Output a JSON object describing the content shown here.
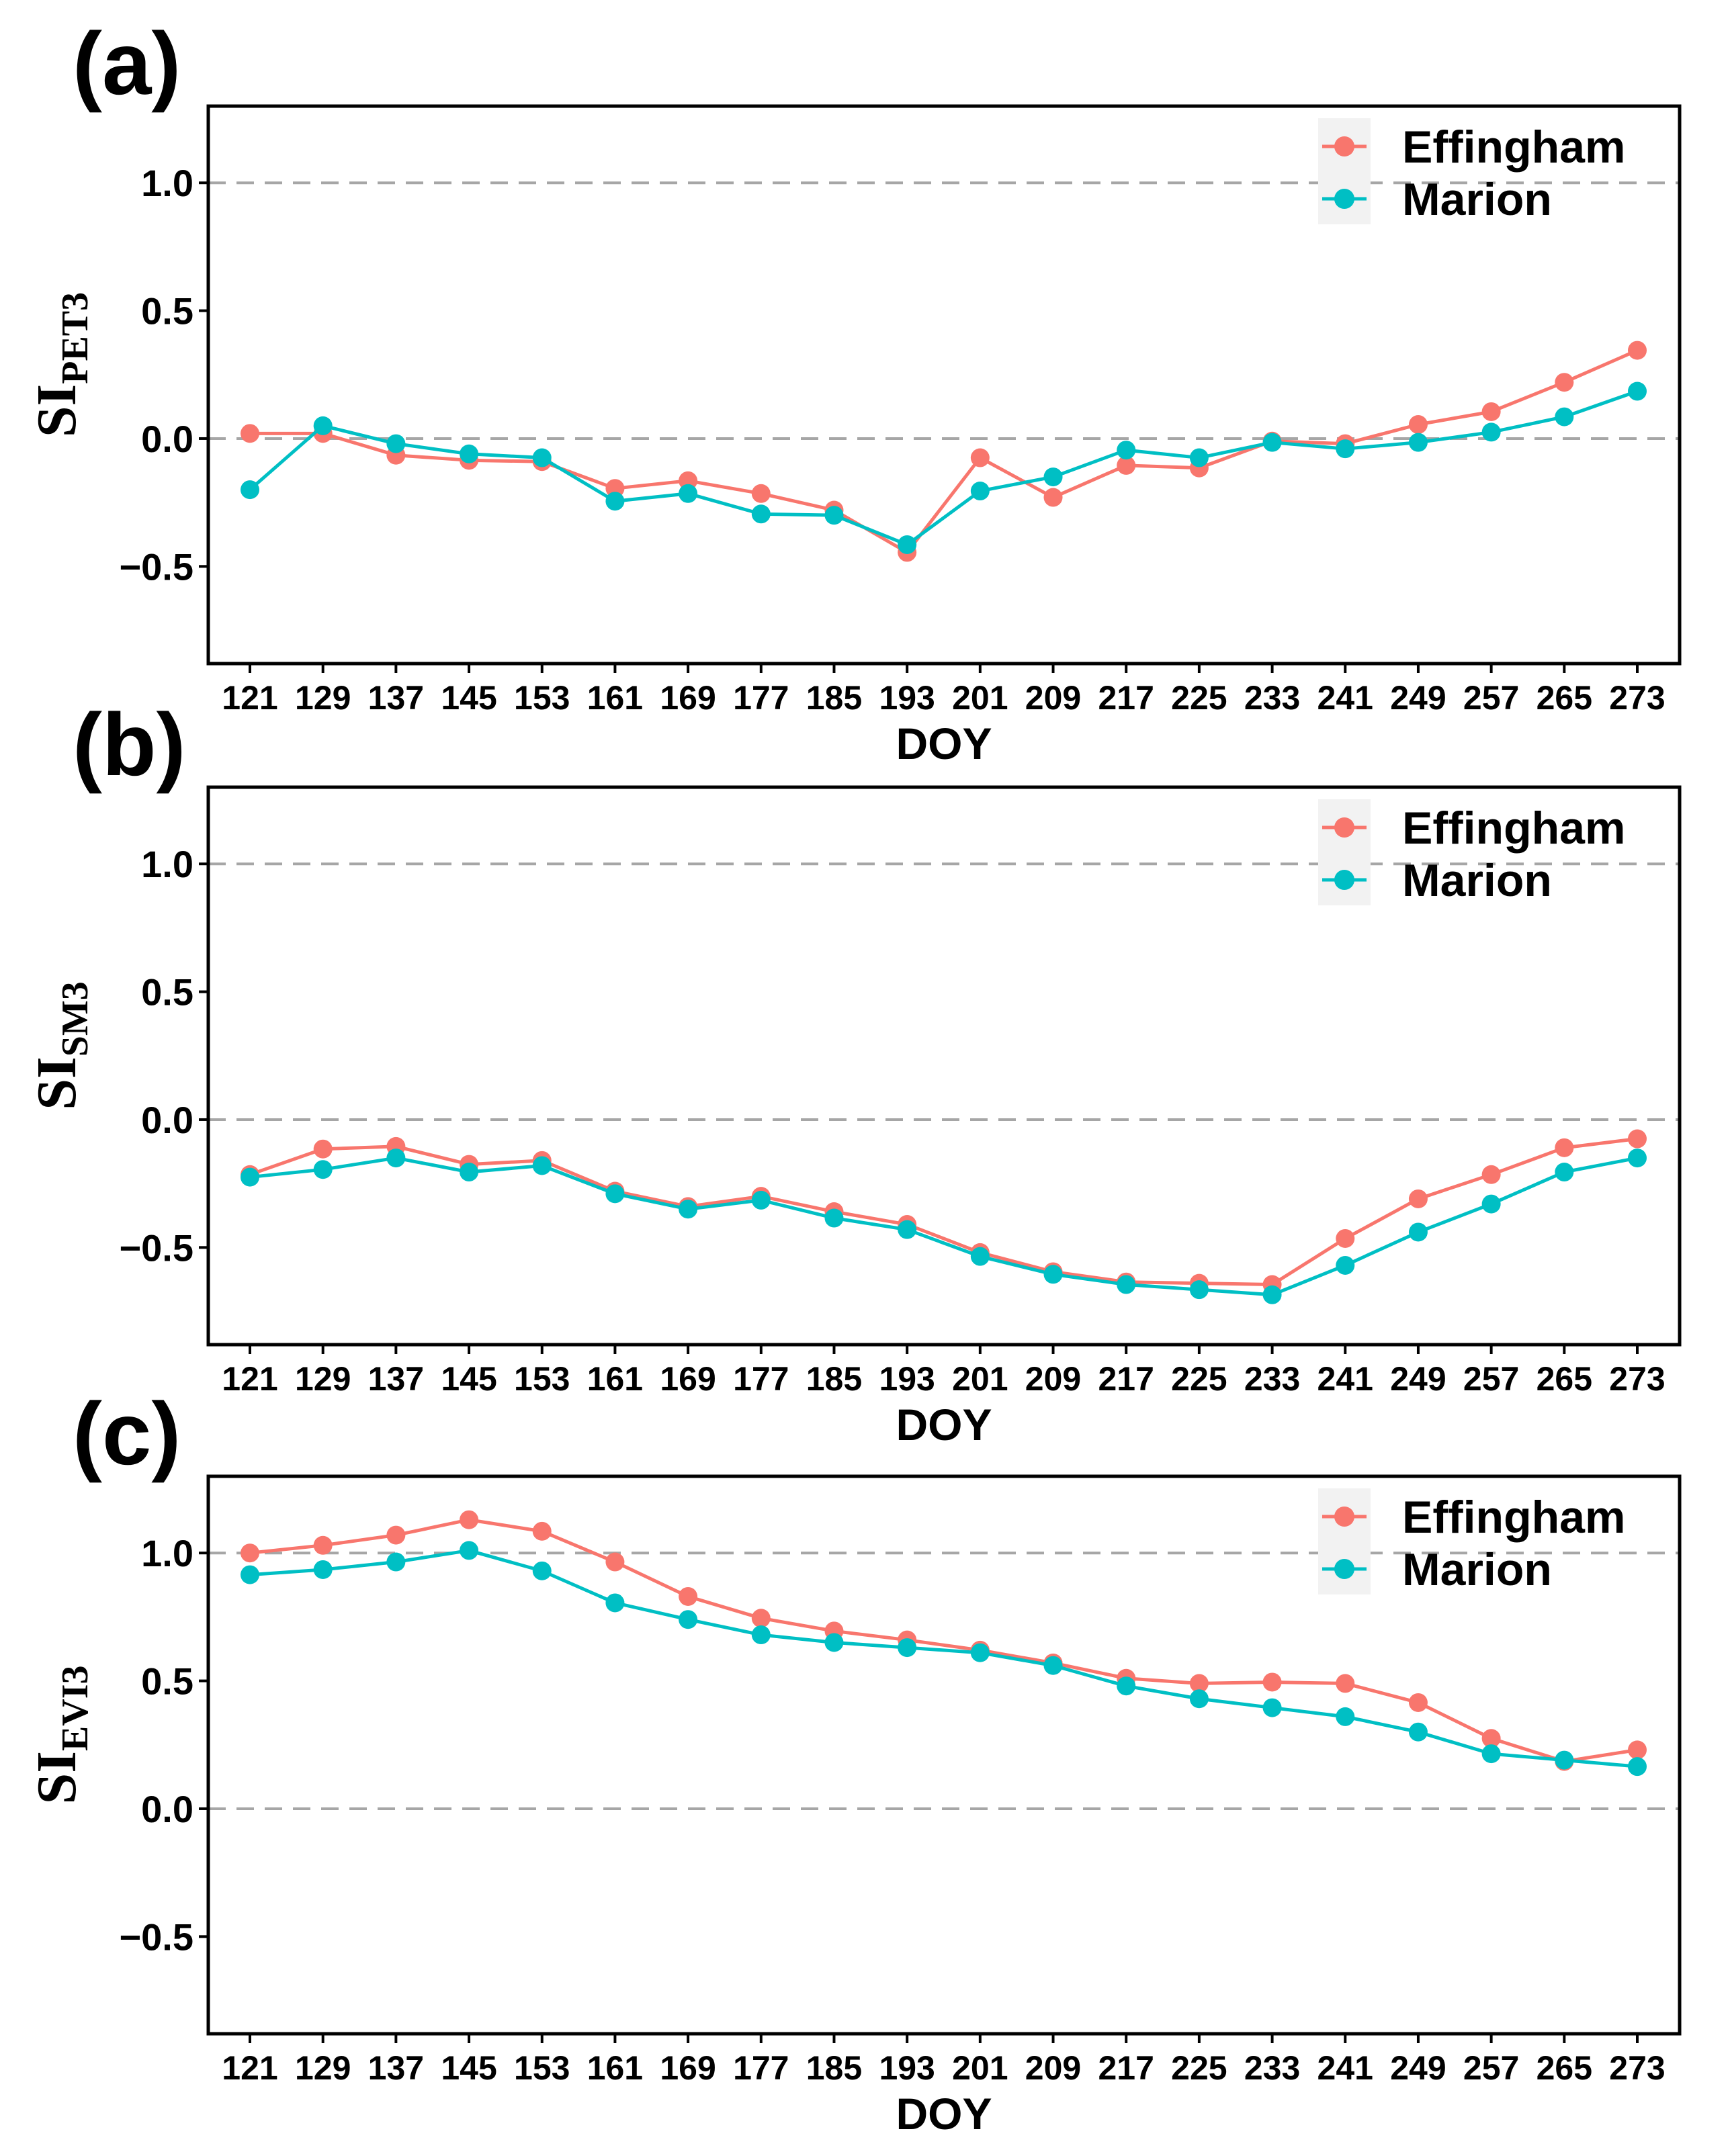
{
  "colors": {
    "effingham": "#F8766D",
    "marion": "#00BFC4"
  },
  "chart_data": [
    {
      "type": "line",
      "panel_label": "(a)",
      "ylabel_main": "SI",
      "ylabel_sub": "PET3",
      "xlabel": "DOY",
      "x": [
        121,
        129,
        137,
        145,
        153,
        161,
        169,
        177,
        185,
        193,
        201,
        209,
        217,
        225,
        233,
        241,
        249,
        257,
        265,
        273
      ],
      "x_tick_labels": [
        "121",
        "129",
        "137",
        "145",
        "153",
        "161",
        "169",
        "177",
        "185",
        "193",
        "201",
        "209",
        "217",
        "225",
        "233",
        "241",
        "249",
        "257",
        "265",
        "273"
      ],
      "ylim": [
        -0.88,
        1.3
      ],
      "yticks": [
        1.0,
        0.5,
        0.0,
        -0.5
      ],
      "ytick_labels": [
        "1.0",
        "0.5",
        "0.0",
        "−0.5"
      ],
      "reference_lines": [
        1.0,
        0.0
      ],
      "legend": [
        "Effingham",
        "Marion"
      ],
      "series": [
        {
          "name": "Effingham",
          "values": [
            0.02,
            0.02,
            -0.065,
            -0.085,
            -0.09,
            -0.195,
            -0.165,
            -0.215,
            -0.28,
            -0.445,
            -0.075,
            -0.23,
            -0.105,
            -0.115,
            -0.01,
            -0.02,
            0.055,
            0.105,
            0.22,
            0.345
          ]
        },
        {
          "name": "Marion",
          "values": [
            -0.2,
            0.05,
            -0.02,
            -0.06,
            -0.075,
            -0.245,
            -0.215,
            -0.295,
            -0.3,
            -0.415,
            -0.205,
            -0.15,
            -0.045,
            -0.075,
            -0.015,
            -0.04,
            -0.015,
            0.025,
            0.085,
            0.185
          ]
        }
      ]
    },
    {
      "type": "line",
      "panel_label": "(b)",
      "ylabel_main": "SI",
      "ylabel_sub": "SM3",
      "xlabel": "DOY",
      "x": [
        121,
        129,
        137,
        145,
        153,
        161,
        169,
        177,
        185,
        193,
        201,
        209,
        217,
        225,
        233,
        241,
        249,
        257,
        265,
        273
      ],
      "x_tick_labels": [
        "121",
        "129",
        "137",
        "145",
        "153",
        "161",
        "169",
        "177",
        "185",
        "193",
        "201",
        "209",
        "217",
        "225",
        "233",
        "241",
        "249",
        "257",
        "265",
        "273"
      ],
      "ylim": [
        -0.88,
        1.3
      ],
      "yticks": [
        1.0,
        0.5,
        0.0,
        -0.5
      ],
      "ytick_labels": [
        "1.0",
        "0.5",
        "0.0",
        "−0.5"
      ],
      "reference_lines": [
        1.0,
        0.0
      ],
      "legend": [
        "Effingham",
        "Marion"
      ],
      "series": [
        {
          "name": "Effingham",
          "values": [
            -0.215,
            -0.115,
            -0.105,
            -0.175,
            -0.16,
            -0.28,
            -0.34,
            -0.3,
            -0.36,
            -0.41,
            -0.52,
            -0.595,
            -0.635,
            -0.64,
            -0.645,
            -0.465,
            -0.31,
            -0.215,
            -0.11,
            -0.075
          ]
        },
        {
          "name": "Marion",
          "values": [
            -0.225,
            -0.195,
            -0.15,
            -0.205,
            -0.18,
            -0.29,
            -0.35,
            -0.315,
            -0.385,
            -0.43,
            -0.535,
            -0.605,
            -0.645,
            -0.665,
            -0.685,
            -0.57,
            -0.44,
            -0.33,
            -0.205,
            -0.15
          ]
        }
      ]
    },
    {
      "type": "line",
      "panel_label": "(c)",
      "ylabel_main": "SI",
      "ylabel_sub": "EVI3",
      "xlabel": "DOY",
      "x": [
        121,
        129,
        137,
        145,
        153,
        161,
        169,
        177,
        185,
        193,
        201,
        209,
        217,
        225,
        233,
        241,
        249,
        257,
        265,
        273
      ],
      "x_tick_labels": [
        "121",
        "129",
        "137",
        "145",
        "153",
        "161",
        "169",
        "177",
        "185",
        "193",
        "201",
        "209",
        "217",
        "225",
        "233",
        "241",
        "249",
        "257",
        "265",
        "273"
      ],
      "ylim": [
        -0.88,
        1.3
      ],
      "yticks": [
        1.0,
        0.5,
        0.0,
        -0.5
      ],
      "ytick_labels": [
        "1.0",
        "0.5",
        "0.0",
        "−0.5"
      ],
      "reference_lines": [
        1.0,
        0.0
      ],
      "legend": [
        "Effingham",
        "Marion"
      ],
      "series": [
        {
          "name": "Effingham",
          "values": [
            1.0,
            1.03,
            1.07,
            1.13,
            1.085,
            0.965,
            0.83,
            0.745,
            0.695,
            0.66,
            0.62,
            0.57,
            0.51,
            0.49,
            0.495,
            0.49,
            0.415,
            0.275,
            0.185,
            0.23
          ]
        },
        {
          "name": "Marion",
          "values": [
            0.915,
            0.935,
            0.965,
            1.01,
            0.93,
            0.805,
            0.74,
            0.68,
            0.65,
            0.63,
            0.61,
            0.56,
            0.48,
            0.43,
            0.395,
            0.36,
            0.3,
            0.215,
            0.19,
            0.165
          ]
        }
      ]
    }
  ]
}
